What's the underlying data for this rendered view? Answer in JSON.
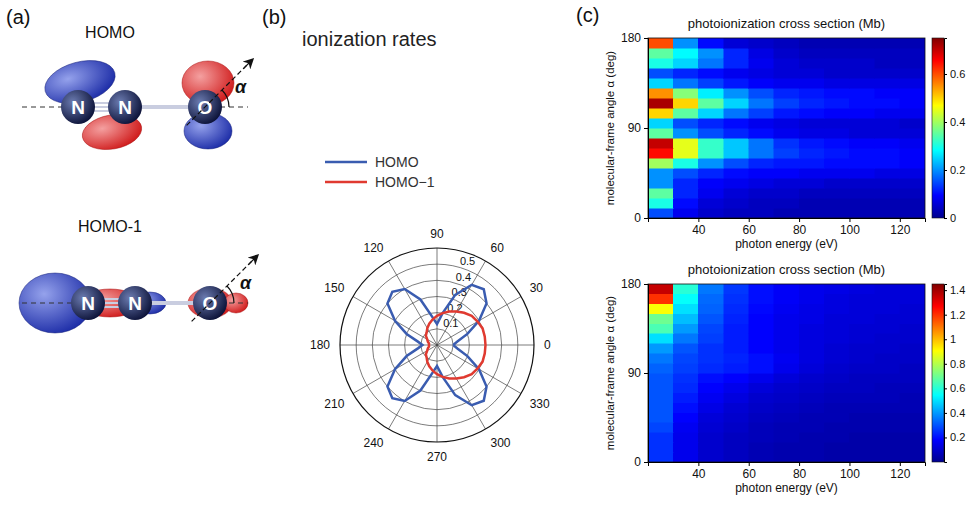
{
  "diagram": {
    "panel_label": "(a)",
    "orbitals": [
      {
        "title": "HOMO",
        "atoms": [
          "N",
          "N",
          "O"
        ],
        "angle_label": "α"
      },
      {
        "title": "HOMO-1",
        "atoms": [
          "N",
          "N",
          "O"
        ],
        "angle_label": "α"
      }
    ]
  },
  "chart_data": [
    {
      "type": "polar_line",
      "panel_label": "(b)",
      "title": "ionization rates",
      "x": [
        0,
        10,
        20,
        30,
        40,
        50,
        60,
        70,
        80,
        90,
        100,
        110,
        120,
        130,
        140,
        150,
        160,
        170,
        180,
        190,
        200,
        210,
        220,
        230,
        240,
        250,
        260,
        270,
        280,
        290,
        300,
        310,
        320,
        330,
        340,
        350,
        360
      ],
      "series": [
        {
          "name": "HOMO",
          "color": "#3a5cb0",
          "values": [
            0.1,
            0.13,
            0.2,
            0.3,
            0.4,
            0.45,
            0.43,
            0.33,
            0.2,
            0.13,
            0.18,
            0.3,
            0.4,
            0.43,
            0.4,
            0.3,
            0.2,
            0.12,
            0.09,
            0.12,
            0.2,
            0.3,
            0.4,
            0.43,
            0.4,
            0.3,
            0.18,
            0.13,
            0.2,
            0.33,
            0.43,
            0.45,
            0.4,
            0.3,
            0.2,
            0.13,
            0.1
          ]
        },
        {
          "name": "HOMO−1",
          "color": "#e03a30",
          "values": [
            0.3,
            0.3,
            0.3,
            0.29,
            0.28,
            0.26,
            0.24,
            0.22,
            0.2,
            0.18,
            0.16,
            0.14,
            0.12,
            0.1,
            0.09,
            0.07,
            0.06,
            0.05,
            0.05,
            0.05,
            0.06,
            0.07,
            0.09,
            0.1,
            0.12,
            0.14,
            0.16,
            0.18,
            0.2,
            0.22,
            0.24,
            0.26,
            0.28,
            0.29,
            0.3,
            0.3,
            0.3
          ]
        }
      ],
      "xlim": [
        0,
        360
      ],
      "xticks": [
        0,
        30,
        60,
        90,
        120,
        150,
        180,
        210,
        240,
        270,
        300,
        330
      ],
      "ylim": [
        0,
        0.6
      ],
      "yticks": [
        0.1,
        0.2,
        0.3,
        0.4,
        0.5
      ],
      "grid": true,
      "legend": "top-left"
    },
    {
      "type": "heatmap",
      "panel_label": "(c)",
      "title": "photoionization cross section (Mb)",
      "x_label": "photon energy (eV)",
      "y_label": "molecular-frame angle α (deg)",
      "x": [
        25,
        35,
        45,
        55,
        65,
        75,
        85,
        95,
        105,
        115,
        125
      ],
      "y": [
        5,
        15,
        25,
        35,
        45,
        55,
        65,
        75,
        85,
        95,
        105,
        115,
        125,
        135,
        145,
        155,
        165,
        175
      ],
      "cells": [
        [
          0.15,
          0.08,
          0.05,
          0.04,
          0.04,
          0.03,
          0.03,
          0.03,
          0.03,
          0.03,
          0.03
        ],
        [
          0.3,
          0.1,
          0.06,
          0.05,
          0.04,
          0.04,
          0.03,
          0.03,
          0.03,
          0.03,
          0.03
        ],
        [
          0.35,
          0.12,
          0.08,
          0.06,
          0.05,
          0.05,
          0.04,
          0.04,
          0.04,
          0.04,
          0.04
        ],
        [
          0.2,
          0.12,
          0.09,
          0.08,
          0.07,
          0.06,
          0.06,
          0.05,
          0.05,
          0.05,
          0.05
        ],
        [
          0.2,
          0.15,
          0.12,
          0.1,
          0.09,
          0.09,
          0.08,
          0.08,
          0.08,
          0.07,
          0.07
        ],
        [
          0.4,
          0.3,
          0.2,
          0.15,
          0.12,
          0.11,
          0.11,
          0.1,
          0.1,
          0.1,
          0.09
        ],
        [
          0.65,
          0.45,
          0.32,
          0.24,
          0.18,
          0.14,
          0.12,
          0.11,
          0.1,
          0.1,
          0.09
        ],
        [
          0.7,
          0.45,
          0.32,
          0.24,
          0.18,
          0.13,
          0.11,
          0.1,
          0.09,
          0.09,
          0.08
        ],
        [
          0.35,
          0.2,
          0.15,
          0.12,
          0.1,
          0.08,
          0.07,
          0.07,
          0.06,
          0.06,
          0.06
        ],
        [
          0.25,
          0.15,
          0.12,
          0.1,
          0.08,
          0.07,
          0.06,
          0.06,
          0.06,
          0.06,
          0.05
        ],
        [
          0.5,
          0.35,
          0.25,
          0.18,
          0.14,
          0.11,
          0.1,
          0.09,
          0.09,
          0.08,
          0.08
        ],
        [
          0.72,
          0.5,
          0.35,
          0.25,
          0.18,
          0.14,
          0.12,
          0.11,
          0.1,
          0.1,
          0.09
        ],
        [
          0.55,
          0.38,
          0.27,
          0.2,
          0.15,
          0.12,
          0.11,
          0.1,
          0.1,
          0.09,
          0.09
        ],
        [
          0.25,
          0.18,
          0.14,
          0.11,
          0.09,
          0.08,
          0.08,
          0.07,
          0.07,
          0.07,
          0.07
        ],
        [
          0.15,
          0.12,
          0.1,
          0.08,
          0.07,
          0.06,
          0.06,
          0.05,
          0.05,
          0.05,
          0.05
        ],
        [
          0.3,
          0.25,
          0.18,
          0.12,
          0.08,
          0.06,
          0.05,
          0.05,
          0.05,
          0.04,
          0.04
        ],
        [
          0.35,
          0.28,
          0.2,
          0.12,
          0.07,
          0.05,
          0.04,
          0.04,
          0.04,
          0.04,
          0.04
        ],
        [
          0.6,
          0.2,
          0.1,
          0.06,
          0.05,
          0.04,
          0.03,
          0.03,
          0.03,
          0.03,
          0.03
        ]
      ],
      "xlim": [
        20,
        130
      ],
      "xticks": [
        40,
        60,
        80,
        100,
        120
      ],
      "ylim": [
        0,
        180
      ],
      "yticks": [
        0,
        90,
        180
      ],
      "color": "jet",
      "colorbar": {
        "range": [
          0,
          0.75
        ],
        "ticks": [
          0,
          0.2,
          0.4,
          0.6
        ]
      }
    },
    {
      "type": "heatmap",
      "title": "photoionization cross section (Mb)",
      "x_label": "photon energy (eV)",
      "y_label": "molecular-frame angle α (deg)",
      "x": [
        25,
        35,
        45,
        55,
        65,
        75,
        85,
        95,
        105,
        115,
        125
      ],
      "y": [
        5,
        15,
        25,
        35,
        45,
        55,
        65,
        75,
        85,
        95,
        105,
        115,
        125,
        135,
        145,
        155,
        165,
        175
      ],
      "cells": [
        [
          0.25,
          0.15,
          0.1,
          0.08,
          0.06,
          0.05,
          0.05,
          0.04,
          0.04,
          0.04,
          0.04
        ],
        [
          0.25,
          0.15,
          0.1,
          0.08,
          0.06,
          0.05,
          0.05,
          0.04,
          0.04,
          0.04,
          0.04
        ],
        [
          0.25,
          0.15,
          0.1,
          0.08,
          0.07,
          0.06,
          0.05,
          0.05,
          0.04,
          0.04,
          0.04
        ],
        [
          0.28,
          0.16,
          0.11,
          0.09,
          0.07,
          0.06,
          0.06,
          0.05,
          0.05,
          0.05,
          0.05
        ],
        [
          0.3,
          0.18,
          0.12,
          0.1,
          0.08,
          0.07,
          0.06,
          0.06,
          0.05,
          0.05,
          0.05
        ],
        [
          0.3,
          0.2,
          0.14,
          0.11,
          0.09,
          0.08,
          0.07,
          0.06,
          0.06,
          0.06,
          0.06
        ],
        [
          0.3,
          0.22,
          0.16,
          0.13,
          0.1,
          0.09,
          0.08,
          0.07,
          0.07,
          0.07,
          0.06
        ],
        [
          0.3,
          0.24,
          0.18,
          0.15,
          0.12,
          0.1,
          0.09,
          0.08,
          0.08,
          0.07,
          0.07
        ],
        [
          0.3,
          0.25,
          0.2,
          0.18,
          0.15,
          0.12,
          0.1,
          0.09,
          0.08,
          0.08,
          0.08
        ],
        [
          0.32,
          0.27,
          0.24,
          0.22,
          0.2,
          0.15,
          0.12,
          0.1,
          0.09,
          0.09,
          0.08
        ],
        [
          0.35,
          0.28,
          0.25,
          0.23,
          0.2,
          0.16,
          0.13,
          0.11,
          0.1,
          0.09,
          0.09
        ],
        [
          0.4,
          0.3,
          0.25,
          0.22,
          0.18,
          0.15,
          0.13,
          0.11,
          0.1,
          0.1,
          0.09
        ],
        [
          0.5,
          0.35,
          0.27,
          0.22,
          0.18,
          0.15,
          0.13,
          0.12,
          0.11,
          0.1,
          0.1
        ],
        [
          0.65,
          0.4,
          0.28,
          0.22,
          0.18,
          0.15,
          0.13,
          0.12,
          0.11,
          0.11,
          0.1
        ],
        [
          0.7,
          0.45,
          0.3,
          0.23,
          0.18,
          0.15,
          0.14,
          0.12,
          0.12,
          0.11,
          0.11
        ],
        [
          0.9,
          0.5,
          0.32,
          0.24,
          0.19,
          0.16,
          0.14,
          0.13,
          0.12,
          0.12,
          0.11
        ],
        [
          1.2,
          0.55,
          0.33,
          0.25,
          0.2,
          0.17,
          0.15,
          0.13,
          0.12,
          0.12,
          0.12
        ],
        [
          1.35,
          0.6,
          0.35,
          0.26,
          0.2,
          0.17,
          0.15,
          0.14,
          0.13,
          0.12,
          0.12
        ]
      ],
      "xlim": [
        20,
        130
      ],
      "xticks": [
        40,
        60,
        80,
        100,
        120
      ],
      "ylim": [
        0,
        180
      ],
      "yticks": [
        0,
        90,
        180
      ],
      "color": "jet",
      "colorbar": {
        "range": [
          0,
          1.45
        ],
        "ticks": [
          0.2,
          0.4,
          0.6,
          0.8,
          1,
          1.2,
          1.4
        ]
      }
    }
  ]
}
